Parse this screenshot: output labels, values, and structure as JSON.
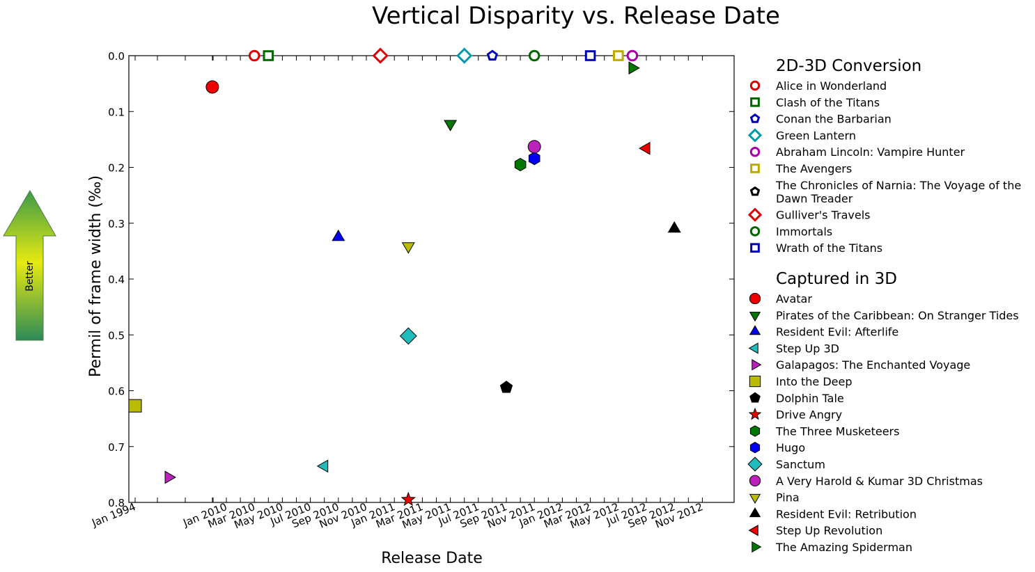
{
  "chart_data": {
    "type": "scatter",
    "title": "Vertical Disparity vs. Release Date",
    "xlabel": "Release Date",
    "ylabel": "Permil of frame width (‰)",
    "yticks": [
      "0.0",
      "0.1",
      "0.2",
      "0.3",
      "0.4",
      "0.5",
      "0.6",
      "0.7",
      "0.8"
    ],
    "xticks": [
      "Jan 1994",
      "Jan 2010",
      "Mar 2010",
      "May 2010",
      "Jul 2010",
      "Sep 2010",
      "Nov 2010",
      "Jan 2011",
      "Mar 2011",
      "May 2011",
      "Jul 2011",
      "Sep 2011",
      "Nov 2011",
      "Jan 2012",
      "Mar 2012",
      "May 2012",
      "Jul 2012",
      "Sep 2012",
      "Nov 2012"
    ],
    "ylim": [
      0.8,
      0.0
    ],
    "y_inverted": true,
    "arrow_label": "Better",
    "groups": [
      {
        "name": "2D-3D Conversion",
        "series": [
          {
            "name": "Alice in Wonderland",
            "marker": "circle",
            "filled": false,
            "color": "#dd0000",
            "x": "Mar 2010",
            "y": 0.0
          },
          {
            "name": "Clash of the Titans",
            "marker": "square",
            "filled": false,
            "color": "#006600",
            "x": "Apr 2010",
            "y": 0.0
          },
          {
            "name": "Conan the Barbarian",
            "marker": "pentagon",
            "filled": false,
            "color": "#0000bb",
            "x": "Aug 2011",
            "y": 0.0
          },
          {
            "name": "Green Lantern",
            "marker": "diamond",
            "filled": false,
            "color": "#0099aa",
            "x": "Jun 2011",
            "y": 0.0
          },
          {
            "name": "Abraham Lincoln: Vampire Hunter",
            "marker": "circle",
            "filled": false,
            "color": "#aa00aa",
            "x": "Jun 2012",
            "y": 0.0
          },
          {
            "name": "The Avengers",
            "marker": "square",
            "filled": false,
            "color": "#bbaa00",
            "x": "May 2012",
            "y": 0.0
          },
          {
            "name": "The Chronicles of Narnia: The Voyage of the Dawn Treader",
            "marker": "pentagon",
            "filled": false,
            "color": "#000000",
            "x": "Dec 2010",
            "y": 0.0
          },
          {
            "name": "Gulliver's Travels",
            "marker": "diamond",
            "filled": false,
            "color": "#dd0000",
            "x": "Dec 2010",
            "y": 0.0
          },
          {
            "name": "Immortals",
            "marker": "circle",
            "filled": false,
            "color": "#006600",
            "x": "Nov 2011",
            "y": 0.0
          },
          {
            "name": "Wrath of the Titans",
            "marker": "square",
            "filled": false,
            "color": "#0000bb",
            "x": "Mar 2012",
            "y": 0.0
          }
        ]
      },
      {
        "name": "Captured in 3D",
        "series": [
          {
            "name": "Avatar",
            "marker": "circle",
            "filled": true,
            "color": "#ee0000",
            "x": "Dec 2009",
            "y": 0.056
          },
          {
            "name": "Pirates of the Caribbean: On Stranger Tides",
            "marker": "triangle-down",
            "filled": true,
            "color": "#007700",
            "x": "May 2011",
            "y": 0.122
          },
          {
            "name": "Resident Evil: Afterlife",
            "marker": "triangle-up",
            "filled": true,
            "color": "#0000ee",
            "x": "Sep 2010",
            "y": 0.325
          },
          {
            "name": "Step Up 3D",
            "marker": "triangle-left",
            "filled": true,
            "color": "#22bbbb",
            "x": "Aug 2010",
            "y": 0.735
          },
          {
            "name": "Galapagos: The Enchanted Voyage",
            "marker": "triangle-right",
            "filled": true,
            "color": "#bb22bb",
            "x": "1999",
            "y": 0.755
          },
          {
            "name": "Into the Deep",
            "marker": "square",
            "filled": true,
            "color": "#bbbb00",
            "x": "1994",
            "y": 0.627
          },
          {
            "name": "Dolphin Tale",
            "marker": "pentagon",
            "filled": true,
            "color": "#000000",
            "x": "Sep 2011",
            "y": 0.594
          },
          {
            "name": "Drive Angry",
            "marker": "star",
            "filled": true,
            "color": "#ee0000",
            "x": "Feb 2011",
            "y": 0.795
          },
          {
            "name": "The Three Musketeers",
            "marker": "hexagon",
            "filled": true,
            "color": "#007700",
            "x": "Oct 2011",
            "y": 0.195
          },
          {
            "name": "Hugo",
            "marker": "hexagon",
            "filled": true,
            "color": "#0000ee",
            "x": "Nov 2011",
            "y": 0.184
          },
          {
            "name": "Sanctum",
            "marker": "diamond",
            "filled": true,
            "color": "#22bbbb",
            "x": "Feb 2011",
            "y": 0.502
          },
          {
            "name": "A Very Harold & Kumar 3D Christmas",
            "marker": "circle",
            "filled": true,
            "color": "#bb22bb",
            "x": "Nov 2011",
            "y": 0.163
          },
          {
            "name": "Pina",
            "marker": "triangle-down",
            "filled": true,
            "color": "#bbbb00",
            "x": "Feb 2011",
            "y": 0.341
          },
          {
            "name": "Resident Evil: Retribution",
            "marker": "triangle-up",
            "filled": true,
            "color": "#000000",
            "x": "Sep 2012",
            "y": 0.31
          },
          {
            "name": "Step Up Revolution",
            "marker": "triangle-left",
            "filled": true,
            "color": "#ee0000",
            "x": "Jul 2012",
            "y": 0.166
          },
          {
            "name": "The Amazing Spiderman",
            "marker": "triangle-right",
            "filled": true,
            "color": "#007700",
            "x": "Jun 2012",
            "y": 0.022
          }
        ]
      }
    ]
  }
}
